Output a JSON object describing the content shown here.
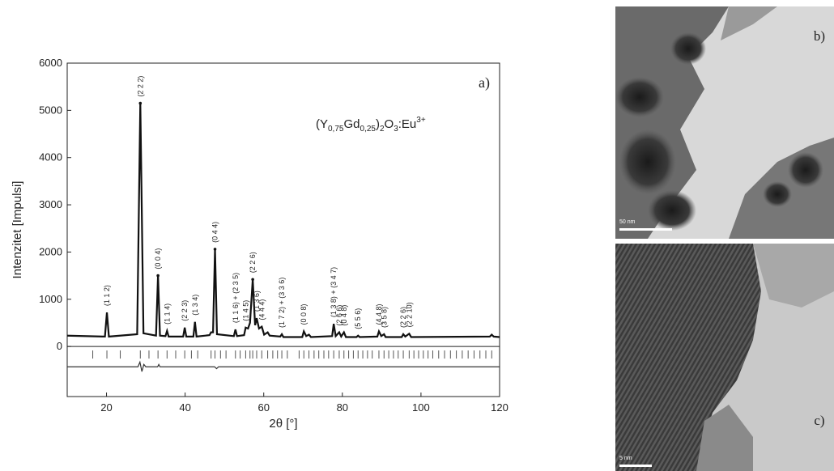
{
  "chart_data": {
    "type": "line",
    "ylabel": "Intenzitet [Impulsi]",
    "xlabel": "2θ [°]",
    "panel_label": "a)",
    "formula": [
      "(Y",
      "0,75",
      "Gd",
      "0,25",
      ")",
      "2",
      "O",
      "3",
      ":Eu",
      "3+"
    ],
    "xlim": [
      10,
      120
    ],
    "ylim": [
      -1060,
      6000
    ],
    "xticks": [
      20,
      40,
      60,
      80,
      100,
      120
    ],
    "yticks": [
      0,
      1000,
      2000,
      3000,
      4000,
      5000,
      6000
    ],
    "color": "#111111",
    "x": [
      10,
      19.6,
      20.1,
      20.6,
      27.8,
      28.6,
      29.4,
      32.6,
      33.1,
      33.6,
      35.0,
      35.4,
      35.8,
      39.5,
      39.9,
      40.3,
      42.1,
      42.5,
      42.9,
      46.2,
      46.6,
      47.1,
      47.6,
      48.1,
      52.4,
      52.8,
      53.2,
      55.0,
      55.4,
      56.0,
      56.5,
      57.2,
      57.8,
      58.2,
      58.8,
      59.5,
      60.1,
      61.0,
      61.5,
      64.2,
      64.6,
      65.0,
      69.8,
      70.2,
      70.8,
      71.5,
      72.0,
      77.4,
      77.8,
      78.3,
      79.2,
      79.7,
      80.4,
      80.9,
      83.6,
      84.0,
      84.4,
      88.9,
      89.3,
      89.9,
      90.6,
      91.0,
      95.1,
      95.5,
      96.0,
      97.0,
      97.5,
      117.5,
      118.0,
      118.5,
      120
    ],
    "values": [
      230,
      210,
      720,
      210,
      260,
      5150,
      280,
      230,
      1500,
      230,
      220,
      330,
      210,
      210,
      400,
      210,
      210,
      520,
      210,
      240,
      300,
      300,
      2060,
      260,
      220,
      360,
      220,
      240,
      400,
      380,
      500,
      1420,
      450,
      600,
      380,
      420,
      250,
      300,
      230,
      210,
      260,
      200,
      200,
      320,
      220,
      250,
      200,
      220,
      480,
      220,
      300,
      210,
      300,
      200,
      200,
      230,
      200,
      210,
      320,
      220,
      260,
      200,
      200,
      260,
      210,
      270,
      200,
      210,
      250,
      210,
      200
    ],
    "difference": {
      "x": [
        10,
        28,
        28.5,
        29,
        29.5,
        30,
        33,
        33.3,
        33.6,
        47.5,
        48,
        48.5,
        120
      ],
      "values": [
        -430,
        -430,
        -330,
        -530,
        -380,
        -430,
        -430,
        -380,
        -430,
        -430,
        -470,
        -430,
        -430
      ]
    },
    "reflections": {
      "y": -170,
      "x": [
        16.5,
        20.1,
        23.5,
        28.6,
        30.8,
        33.1,
        35.4,
        37.6,
        39.9,
        41.6,
        43.2,
        46.6,
        47.6,
        49.0,
        50.4,
        52.8,
        54.0,
        55.4,
        56.5,
        57.2,
        58.2,
        59.5,
        61.0,
        62.3,
        63.5,
        64.6,
        66.0,
        69.0,
        70.2,
        71.5,
        72.8,
        74.0,
        75.3,
        76.5,
        77.8,
        79.2,
        80.4,
        81.6,
        82.8,
        84.0,
        85.2,
        86.4,
        87.6,
        89.3,
        90.6,
        91.8,
        93.0,
        94.2,
        95.5,
        97.0,
        98.2,
        99.4,
        100.6,
        101.8,
        103.0,
        104.5,
        106.0,
        107.5,
        109.0,
        110.5,
        112.0,
        113.5,
        115.0,
        116.5,
        118.0
      ]
    },
    "peak_labels": [
      {
        "x": 20.1,
        "y": 720,
        "label": "(1 1 2)"
      },
      {
        "x": 28.6,
        "y": 5150,
        "label": "(2 2 2)"
      },
      {
        "x": 33.1,
        "y": 1500,
        "label": "(0 0 4)"
      },
      {
        "x": 35.4,
        "y": 330,
        "label": "(1 1 4)"
      },
      {
        "x": 39.9,
        "y": 400,
        "label": "(2 2 3)"
      },
      {
        "x": 42.5,
        "y": 520,
        "label": "(1 3 4)"
      },
      {
        "x": 47.6,
        "y": 2060,
        "label": "(0 4 4)"
      },
      {
        "x": 52.8,
        "y": 360,
        "label": "(1 1 6) + (2 3 5)"
      },
      {
        "x": 55.4,
        "y": 400,
        "label": "(1 4 5)"
      },
      {
        "x": 57.2,
        "y": 1420,
        "label": "(2 2 6)"
      },
      {
        "x": 58.2,
        "y": 600,
        "label": "(1 3 6)"
      },
      {
        "x": 59.5,
        "y": 420,
        "label": "(4 4 4)"
      },
      {
        "x": 64.6,
        "y": 260,
        "label": "(1 7 2) + (3 3 6)"
      },
      {
        "x": 70.2,
        "y": 320,
        "label": "(0 0 8)"
      },
      {
        "x": 77.8,
        "y": 480,
        "label": "(1 3 8) + (3 4 7)"
      },
      {
        "x": 79.2,
        "y": 300,
        "label": "(2 6 6)"
      },
      {
        "x": 80.4,
        "y": 300,
        "label": "(0 4 8)"
      },
      {
        "x": 84.0,
        "y": 230,
        "label": "(5 5 6)"
      },
      {
        "x": 89.3,
        "y": 320,
        "label": "(4 4 8)"
      },
      {
        "x": 90.6,
        "y": 260,
        "label": "(3 5 8)"
      },
      {
        "x": 95.5,
        "y": 260,
        "label": "(2 2 6)"
      },
      {
        "x": 97.0,
        "y": 270,
        "label": "(2 2 10)"
      }
    ]
  },
  "images": [
    {
      "label": "b)",
      "scale_bar": "50 nm"
    },
    {
      "label": "c)",
      "scale_bar": "5 nm"
    }
  ]
}
